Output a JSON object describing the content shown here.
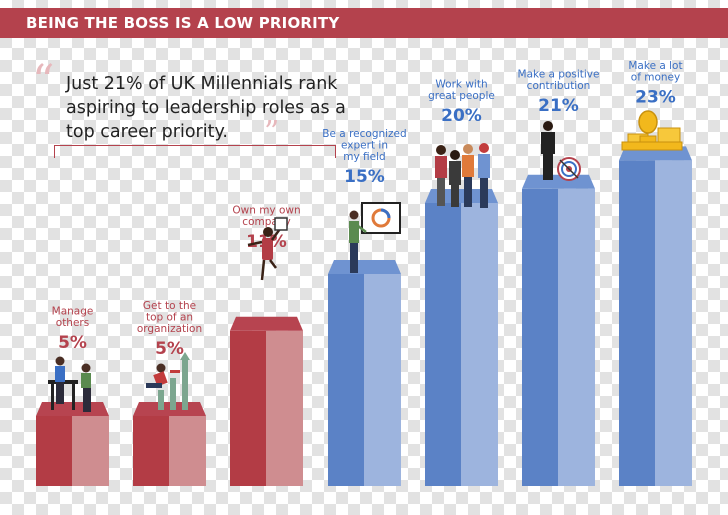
{
  "header": {
    "title": "BEING THE BOSS IS A LOW PRIORITY"
  },
  "quote": {
    "text": "Just 21% of UK Millennials rank aspiring to leadership roles as a top career priority."
  },
  "colors": {
    "red_front": "#cf8d90",
    "red_side": "#b33c45",
    "red_top": "#b74450",
    "red_text": "#b4424d",
    "blue_front": "#9db4de",
    "blue_side": "#5b82c6",
    "blue_top": "#6f93d1",
    "blue_text": "#3a6fc4"
  },
  "chart_data": {
    "type": "bar",
    "categories": [
      [
        "Manage",
        "others"
      ],
      [
        "Get to the",
        "top of an",
        "organization"
      ],
      [
        "Own my own",
        "company"
      ],
      [
        "Be a recognized",
        "expert in",
        "my field"
      ],
      [
        "Work with",
        "great people"
      ],
      [
        "Make a positive",
        "contribution"
      ],
      [
        "Make a lot",
        "of money"
      ]
    ],
    "values": [
      5,
      5,
      11,
      15,
      20,
      21,
      23
    ],
    "value_labels": [
      "5%",
      "5%",
      "11%",
      "15%",
      "20%",
      "21%",
      "23%"
    ],
    "group": [
      "red",
      "red",
      "red",
      "blue",
      "blue",
      "blue",
      "blue"
    ],
    "ylim": [
      0,
      23
    ],
    "grid": false,
    "legend": "none"
  }
}
